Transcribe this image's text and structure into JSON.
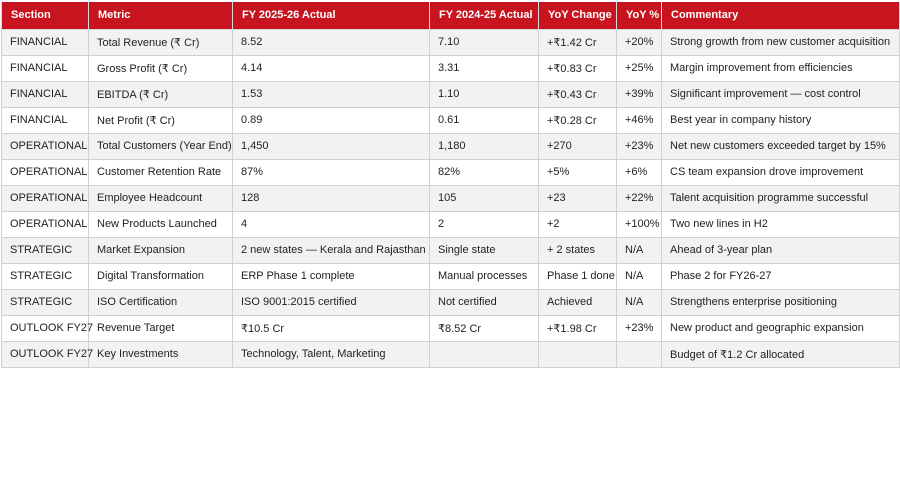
{
  "columns": [
    "Section",
    "Metric",
    "FY 2025-26 Actual",
    "FY 2024-25 Actual",
    "YoY Change",
    "YoY %",
    "Commentary"
  ],
  "rows": [
    [
      "FINANCIAL",
      "Total Revenue (₹ Cr)",
      "8.52",
      "7.10",
      "+₹1.42 Cr",
      "+20%",
      "Strong growth from new customer acquisition"
    ],
    [
      "FINANCIAL",
      "Gross Profit (₹ Cr)",
      "4.14",
      "3.31",
      "+₹0.83 Cr",
      "+25%",
      "Margin improvement from efficiencies"
    ],
    [
      "FINANCIAL",
      "EBITDA (₹ Cr)",
      "1.53",
      "1.10",
      "+₹0.43 Cr",
      "+39%",
      "Significant improvement — cost control"
    ],
    [
      "FINANCIAL",
      "Net Profit (₹ Cr)",
      "0.89",
      "0.61",
      "+₹0.28 Cr",
      "+46%",
      "Best year in company history"
    ],
    [
      "OPERATIONAL",
      "Total Customers (Year End)",
      "1,450",
      "1,180",
      "+270",
      "+23%",
      "Net new customers exceeded target by 15%"
    ],
    [
      "OPERATIONAL",
      "Customer Retention Rate",
      "87%",
      "82%",
      "+5%",
      "+6%",
      "CS team expansion drove improvement"
    ],
    [
      "OPERATIONAL",
      "Employee Headcount",
      "128",
      "105",
      "+23",
      "+22%",
      "Talent acquisition programme successful"
    ],
    [
      "OPERATIONAL",
      "New Products Launched",
      "4",
      "2",
      "+2",
      "+100%",
      "Two new lines in H2"
    ],
    [
      "STRATEGIC",
      "Market Expansion",
      "2 new states — Kerala and Rajasthan",
      "Single state",
      "+ 2 states",
      "N/A",
      "Ahead of 3-year plan"
    ],
    [
      "STRATEGIC",
      "Digital Transformation",
      "ERP Phase 1 complete",
      "Manual processes",
      "Phase 1 done",
      "N/A",
      "Phase 2 for FY26-27"
    ],
    [
      "STRATEGIC",
      "ISO Certification",
      "ISO 9001:2015 certified",
      "Not certified",
      "Achieved",
      "N/A",
      "Strengthens enterprise positioning"
    ],
    [
      "OUTLOOK FY27",
      "Revenue Target",
      "₹10.5 Cr",
      "₹8.52 Cr",
      "+₹1.98 Cr",
      "+23%",
      "New product and geographic expansion"
    ],
    [
      "OUTLOOK FY27",
      "Key Investments",
      "Technology, Talent, Marketing",
      "",
      "",
      "",
      "Budget of ₹1.2 Cr allocated"
    ]
  ],
  "colors": {
    "header_bg": "#c8141e",
    "header_text": "#ffffff",
    "row_alt": "#f2f2f2",
    "grid": "#d0d0d0"
  }
}
